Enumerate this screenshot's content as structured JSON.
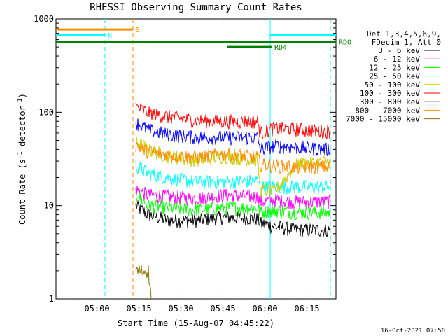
{
  "chart_data": {
    "type": "line",
    "title": "RHESSI Observing Summary Count Rates",
    "xlabel": "Start Time (15-Aug-07 04:45:22)",
    "ylabel_main": "Count Rate (s",
    "ylabel_sup1": "-1",
    "ylabel_mid": " detector",
    "ylabel_sup2": "-1",
    "ylabel_end": ")",
    "y_scale": "log",
    "ylim": [
      1,
      1000
    ],
    "xlim_minutes": [
      0,
      100
    ],
    "y_ticks": [
      "1",
      "10",
      "100",
      "1000"
    ],
    "x_ticks": [
      {
        "label": "05:00",
        "minute": 14.63
      },
      {
        "label": "05:15",
        "minute": 29.63
      },
      {
        "label": "05:30",
        "minute": 44.63
      },
      {
        "label": "05:45",
        "minute": 59.63
      },
      {
        "label": "06:00",
        "minute": 74.63
      },
      {
        "label": "06:15",
        "minute": 89.63
      }
    ],
    "legend_header": [
      "Det 1,3,4,5,6,9,",
      "FDecim 1, Att 0"
    ],
    "legend_position": "right",
    "series": [
      {
        "name": "3 - 6 keV",
        "color": "#000000",
        "segments": [
          [
            28.5,
            10
          ],
          [
            33,
            8
          ],
          [
            40,
            7
          ],
          [
            50,
            7
          ],
          [
            60,
            7.5
          ],
          [
            72,
            7.3
          ],
          [
            73,
            6.5
          ],
          [
            78,
            6
          ],
          [
            86,
            5.5
          ],
          [
            98,
            5.5
          ]
        ]
      },
      {
        "name": "6 - 12 keV",
        "color": "#ff00ff",
        "segments": [
          [
            28.5,
            15
          ],
          [
            33,
            13
          ],
          [
            40,
            12.5
          ],
          [
            50,
            12
          ],
          [
            60,
            13
          ],
          [
            72,
            12.5
          ],
          [
            73,
            11
          ],
          [
            78,
            11.5
          ],
          [
            86,
            11
          ],
          [
            98,
            11
          ]
        ]
      },
      {
        "name": "12 - 25 keV",
        "color": "#00ff00",
        "segments": [
          [
            28.5,
            13
          ],
          [
            33,
            10
          ],
          [
            40,
            9.5
          ],
          [
            50,
            9
          ],
          [
            60,
            9.5
          ],
          [
            72,
            9.5
          ],
          [
            73,
            8.5
          ],
          [
            78,
            9
          ],
          [
            86,
            8.5
          ],
          [
            98,
            8.5
          ]
        ]
      },
      {
        "name": "25 - 50 keV",
        "color": "#00ffff",
        "segments": [
          [
            28.5,
            27
          ],
          [
            33,
            22
          ],
          [
            40,
            20
          ],
          [
            50,
            18
          ],
          [
            60,
            18
          ],
          [
            72,
            18.5
          ],
          [
            73,
            16
          ],
          [
            78,
            16
          ],
          [
            86,
            16
          ],
          [
            98,
            16
          ]
        ]
      },
      {
        "name": "50 - 100 keV",
        "color": "#cccc00",
        "segments": [
          [
            28.5,
            50
          ],
          [
            33,
            40
          ],
          [
            40,
            34
          ],
          [
            50,
            31
          ],
          [
            60,
            34
          ],
          [
            72,
            31
          ],
          [
            73,
            15
          ],
          [
            78,
            14
          ],
          [
            86,
            28
          ],
          [
            98,
            30
          ]
        ]
      },
      {
        "name": "100 - 300 keV",
        "color": "#ff0000",
        "segments": [
          [
            28.5,
            115
          ],
          [
            33,
            100
          ],
          [
            40,
            90
          ],
          [
            50,
            82
          ],
          [
            60,
            80
          ],
          [
            72,
            80
          ],
          [
            73,
            60
          ],
          [
            78,
            68
          ],
          [
            86,
            66
          ],
          [
            98,
            62
          ]
        ]
      },
      {
        "name": "300 - 800 keV",
        "color": "#0000ff",
        "segments": [
          [
            28.5,
            78
          ],
          [
            33,
            65
          ],
          [
            40,
            58
          ],
          [
            50,
            54
          ],
          [
            60,
            54
          ],
          [
            72,
            54
          ],
          [
            73,
            40
          ],
          [
            78,
            44
          ],
          [
            86,
            42
          ],
          [
            98,
            40
          ]
        ]
      },
      {
        "name": "800 - 7000 keV",
        "color": "#ff8c00",
        "segments": [
          [
            28.5,
            45
          ],
          [
            33,
            38
          ],
          [
            40,
            35
          ],
          [
            50,
            33
          ],
          [
            60,
            36
          ],
          [
            72,
            33
          ],
          [
            73,
            28
          ],
          [
            78,
            27
          ],
          [
            86,
            26
          ],
          [
            98,
            26
          ]
        ]
      },
      {
        "name": "7000 - 15000 keV",
        "color": "#8b7500",
        "segments": [
          [
            28.5,
            2
          ],
          [
            33,
            2
          ],
          [
            34,
            1
          ]
        ]
      }
    ],
    "flags": [
      {
        "label": "S",
        "color": "#ff8c00",
        "start": 0,
        "end": 27.5,
        "value": 770
      },
      {
        "label": "N",
        "color": "#00ffff",
        "start": 0,
        "end": 17.5,
        "value": 670
      },
      {
        "label": "RDO",
        "color": "#008000",
        "start": 0,
        "end": 100,
        "value": 570
      },
      {
        "label": "RD4",
        "color": "#008000",
        "start": 61,
        "end": 77,
        "value": 500
      },
      {
        "label": "",
        "color": "#00ffff",
        "start": 76.5,
        "end": 100,
        "value": 670
      }
    ],
    "vlines": [
      {
        "minute": 17.5,
        "color": "#00ffff",
        "style": "dashed"
      },
      {
        "minute": 27.5,
        "color": "#ff8c00",
        "style": "dashed"
      },
      {
        "minute": 76.5,
        "color": "#00ffff",
        "style": "solid"
      },
      {
        "minute": 98.0,
        "color": "#00ffff",
        "style": "dashed"
      }
    ],
    "footer_stamp": "16-Oct-2021 07:50"
  }
}
